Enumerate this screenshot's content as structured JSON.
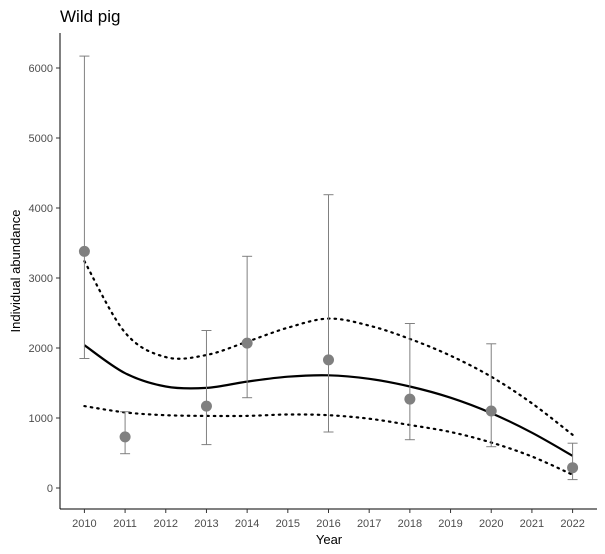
{
  "chart_data": {
    "type": "scatter",
    "title": "Wild pig",
    "xlabel": "Year",
    "ylabel": "Individual abundance",
    "xlim": [
      2009.4,
      2022.6
    ],
    "ylim": [
      -300,
      6500
    ],
    "x_ticks": [
      2010,
      2011,
      2012,
      2013,
      2014,
      2015,
      2016,
      2017,
      2018,
      2019,
      2020,
      2021,
      2022
    ],
    "y_ticks": [
      0,
      1000,
      2000,
      3000,
      4000,
      5000,
      6000
    ],
    "grid": false,
    "legend": "none",
    "colors": {
      "points": "#808080",
      "error_bars": "#808080",
      "fit": "#000000",
      "band": "#000000"
    },
    "points": [
      {
        "x": 2010,
        "y": 3380,
        "lower": 1850,
        "upper": 6170
      },
      {
        "x": 2011,
        "y": 730,
        "lower": 490,
        "upper": 1090
      },
      {
        "x": 2013,
        "y": 1170,
        "lower": 620,
        "upper": 2250
      },
      {
        "x": 2014,
        "y": 2070,
        "lower": 1290,
        "upper": 3310
      },
      {
        "x": 2016,
        "y": 1830,
        "lower": 800,
        "upper": 4190
      },
      {
        "x": 2018,
        "y": 1270,
        "lower": 690,
        "upper": 2350
      },
      {
        "x": 2020,
        "y": 1100,
        "lower": 590,
        "upper": 2060
      },
      {
        "x": 2022,
        "y": 290,
        "lower": 120,
        "upper": 640
      }
    ],
    "fit": {
      "x": [
        2010,
        2011,
        2012,
        2013,
        2014,
        2015,
        2016,
        2017,
        2018,
        2019,
        2020,
        2021,
        2022
      ],
      "y": [
        2040,
        1640,
        1450,
        1430,
        1520,
        1590,
        1610,
        1560,
        1450,
        1290,
        1070,
        790,
        460
      ]
    },
    "upper_band": {
      "x": [
        2010,
        2011,
        2012,
        2013,
        2014,
        2015,
        2016,
        2017,
        2018,
        2019,
        2020,
        2021,
        2022
      ],
      "y": [
        3240,
        2220,
        1870,
        1900,
        2090,
        2290,
        2420,
        2320,
        2130,
        1890,
        1590,
        1210,
        760
      ]
    },
    "lower_band": {
      "x": [
        2010,
        2011,
        2012,
        2013,
        2014,
        2015,
        2016,
        2017,
        2018,
        2019,
        2020,
        2021,
        2022
      ],
      "y": [
        1170,
        1080,
        1040,
        1030,
        1030,
        1050,
        1040,
        990,
        900,
        800,
        650,
        450,
        190
      ]
    }
  }
}
